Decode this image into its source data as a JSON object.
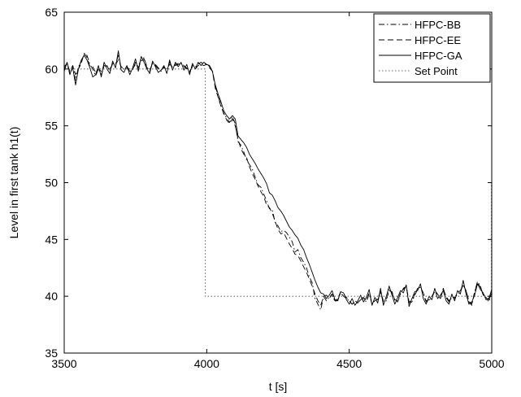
{
  "chart_data": {
    "type": "line",
    "xlabel": "t [s]",
    "ylabel": "Level in first tank h1(t)",
    "xlim": [
      3500,
      5000
    ],
    "ylim": [
      35,
      65
    ],
    "xticks": [
      3500,
      4000,
      4500,
      5000
    ],
    "yticks": [
      35,
      40,
      45,
      50,
      55,
      60,
      65
    ],
    "grid": false,
    "legend_position": "top-right",
    "series": [
      {
        "name": "HFPC-BB",
        "style": "dash-dot",
        "color": "#000000",
        "x": [
          3500,
          3510,
          3520,
          3530,
          3540,
          3550,
          3560,
          3570,
          3580,
          3590,
          3600,
          3610,
          3620,
          3630,
          3640,
          3650,
          3660,
          3670,
          3680,
          3690,
          3700,
          3710,
          3720,
          3730,
          3740,
          3750,
          3760,
          3770,
          3780,
          3790,
          3800,
          3810,
          3820,
          3830,
          3840,
          3850,
          3860,
          3870,
          3880,
          3890,
          3900,
          3910,
          3920,
          3930,
          3940,
          3950,
          3960,
          3970,
          3980,
          3990,
          4000,
          4010,
          4020,
          4030,
          4040,
          4050,
          4060,
          4070,
          4080,
          4090,
          4100,
          4110,
          4120,
          4130,
          4140,
          4150,
          4160,
          4170,
          4180,
          4190,
          4200,
          4210,
          4220,
          4230,
          4240,
          4250,
          4260,
          4270,
          4280,
          4290,
          4300,
          4310,
          4320,
          4330,
          4340,
          4350,
          4360,
          4370,
          4380,
          4390,
          4400,
          4410,
          4420,
          4430,
          4440,
          4450,
          4460,
          4470,
          4480,
          4490,
          4500,
          4510,
          4520,
          4530,
          4540,
          4550,
          4560,
          4570,
          4580,
          4590,
          4600,
          4610,
          4620,
          4630,
          4640,
          4650,
          4660,
          4670,
          4680,
          4690,
          4700,
          4710,
          4720,
          4730,
          4740,
          4750,
          4760,
          4770,
          4780,
          4790,
          4800,
          4810,
          4820,
          4830,
          4840,
          4850,
          4860,
          4870,
          4880,
          4890,
          4900,
          4910,
          4920,
          4930,
          4940,
          4950,
          4960,
          4970,
          4980,
          4990,
          5000
        ],
        "y": [
          60.2,
          60.5,
          59.5,
          60.3,
          59.0,
          60.2,
          60.6,
          61.3,
          61.2,
          60.4,
          60.0,
          59.4,
          60.0,
          59.5,
          60.2,
          60.3,
          59.8,
          60.5,
          60.4,
          61.2,
          60.1,
          60.0,
          60.1,
          59.8,
          59.9,
          60.6,
          60.2,
          60.9,
          61.0,
          60.2,
          59.8,
          60.5,
          60.3,
          60.0,
          59.8,
          60.2,
          59.9,
          60.6,
          60.1,
          60.4,
          60.5,
          60.5,
          60.2,
          60.1,
          59.7,
          60.3,
          60.2,
          60.4,
          60.6,
          60.4,
          60.5,
          60.2,
          59.9,
          58.5,
          57.6,
          56.8,
          56.0,
          55.7,
          55.3,
          55.8,
          55.2,
          53.6,
          53.3,
          52.7,
          52.0,
          51.6,
          51.2,
          50.5,
          49.8,
          49.6,
          49.0,
          48.4,
          47.7,
          47.6,
          46.5,
          46.2,
          45.7,
          45.8,
          45.6,
          45.2,
          44.8,
          43.9,
          44.1,
          43.4,
          43.0,
          42.5,
          41.7,
          41.2,
          39.8,
          39.3,
          38.8,
          40.0,
          39.6,
          39.9,
          40.2,
          39.5,
          39.7,
          40.3,
          40.0,
          39.8,
          39.6,
          39.3,
          39.5,
          39.4,
          39.7,
          39.8,
          39.5,
          40.2,
          39.3,
          39.6,
          39.7,
          40.3,
          39.5,
          39.6,
          40.6,
          40.3,
          39.6,
          39.5,
          40.2,
          40.7,
          40.9,
          39.4,
          39.5,
          40.1,
          40.6,
          40.9,
          40.2,
          39.5,
          39.6,
          40.0,
          40.4,
          40.1,
          39.8,
          40.7,
          39.9,
          39.5,
          39.9,
          39.8,
          40.2,
          40.4,
          41.0,
          40.5,
          39.5,
          39.2,
          40.4,
          41.3,
          40.9,
          40.1,
          39.9,
          39.5,
          40.4
        ]
      },
      {
        "name": "HFPC-EE",
        "style": "dashed",
        "color": "#000000",
        "x": [
          3500,
          3510,
          3520,
          3530,
          3540,
          3550,
          3560,
          3570,
          3580,
          3590,
          3600,
          3610,
          3620,
          3630,
          3640,
          3650,
          3660,
          3670,
          3680,
          3690,
          3700,
          3710,
          3720,
          3730,
          3740,
          3750,
          3760,
          3770,
          3780,
          3790,
          3800,
          3810,
          3820,
          3830,
          3840,
          3850,
          3860,
          3870,
          3880,
          3890,
          3900,
          3910,
          3920,
          3930,
          3940,
          3950,
          3960,
          3970,
          3980,
          3990,
          4000,
          4010,
          4020,
          4030,
          4040,
          4050,
          4060,
          4070,
          4080,
          4090,
          4100,
          4110,
          4120,
          4130,
          4140,
          4150,
          4160,
          4170,
          4180,
          4190,
          4200,
          4210,
          4220,
          4230,
          4240,
          4250,
          4260,
          4270,
          4280,
          4290,
          4300,
          4310,
          4320,
          4330,
          4340,
          4350,
          4360,
          4370,
          4380,
          4390,
          4400,
          4410,
          4420,
          4430,
          4440,
          4450,
          4460,
          4470,
          4480,
          4490,
          4500,
          4510,
          4520,
          4530,
          4540,
          4550,
          4560,
          4570,
          4580,
          4590,
          4600,
          4610,
          4620,
          4630,
          4640,
          4650,
          4660,
          4670,
          4680,
          4690,
          4700,
          4710,
          4720,
          4730,
          4740,
          4750,
          4760,
          4770,
          4780,
          4790,
          4800,
          4810,
          4820,
          4830,
          4840,
          4850,
          4860,
          4870,
          4880,
          4890,
          4900,
          4910,
          4920,
          4930,
          4940,
          4950,
          4960,
          4970,
          4980,
          4990,
          5000
        ],
        "y": [
          60.0,
          60.5,
          59.8,
          60.3,
          59.5,
          60.0,
          60.5,
          61.4,
          61.0,
          60.2,
          60.2,
          59.7,
          60.0,
          59.8,
          60.3,
          60.2,
          60.0,
          60.4,
          60.4,
          60.8,
          60.2,
          60.0,
          60.2,
          59.9,
          60.0,
          60.4,
          60.1,
          60.7,
          60.9,
          60.1,
          59.9,
          60.5,
          60.4,
          60.1,
          59.9,
          60.1,
          60.0,
          60.4,
          60.2,
          60.3,
          60.4,
          60.5,
          60.3,
          60.0,
          59.8,
          60.2,
          60.0,
          60.3,
          60.4,
          60.3,
          60.4,
          60.1,
          59.8,
          58.3,
          57.5,
          56.7,
          56.1,
          55.5,
          55.2,
          55.6,
          55.0,
          53.8,
          53.0,
          52.5,
          52.2,
          51.4,
          50.8,
          50.3,
          49.7,
          49.2,
          48.8,
          48.0,
          47.8,
          47.3,
          46.6,
          45.9,
          45.5,
          45.6,
          45.1,
          44.6,
          44.2,
          43.7,
          43.6,
          43.1,
          42.6,
          42.1,
          41.5,
          40.9,
          40.2,
          39.6,
          39.2,
          40.0,
          40.1,
          39.8,
          40.2,
          39.6,
          39.8,
          40.4,
          40.2,
          39.9,
          39.6,
          39.3,
          39.6,
          39.4,
          39.8,
          39.9,
          39.6,
          40.3,
          39.4,
          39.6,
          39.8,
          40.4,
          39.6,
          39.7,
          40.5,
          40.4,
          39.7,
          39.6,
          40.3,
          40.6,
          40.9,
          39.5,
          39.6,
          40.2,
          40.7,
          40.8,
          40.3,
          39.6,
          39.7,
          40.0,
          40.5,
          40.2,
          39.8,
          40.6,
          40.0,
          39.6,
          39.9,
          39.9,
          40.3,
          40.5,
          41.0,
          40.5,
          39.6,
          39.3,
          40.4,
          41.2,
          40.8,
          40.1,
          40.0,
          39.7,
          40.3
        ]
      },
      {
        "name": "HFPC-GA",
        "style": "solid",
        "color": "#000000",
        "x": [
          3500,
          3510,
          3520,
          3530,
          3540,
          3550,
          3560,
          3570,
          3580,
          3590,
          3600,
          3610,
          3620,
          3630,
          3640,
          3650,
          3660,
          3670,
          3680,
          3690,
          3700,
          3710,
          3720,
          3730,
          3740,
          3750,
          3760,
          3770,
          3780,
          3790,
          3800,
          3810,
          3820,
          3830,
          3840,
          3850,
          3860,
          3870,
          3880,
          3890,
          3900,
          3910,
          3920,
          3930,
          3940,
          3950,
          3960,
          3970,
          3980,
          3990,
          4000,
          4010,
          4020,
          4030,
          4040,
          4050,
          4060,
          4070,
          4080,
          4090,
          4100,
          4110,
          4120,
          4130,
          4140,
          4150,
          4160,
          4170,
          4180,
          4190,
          4200,
          4210,
          4220,
          4230,
          4240,
          4250,
          4260,
          4270,
          4280,
          4290,
          4300,
          4310,
          4320,
          4330,
          4340,
          4350,
          4360,
          4370,
          4380,
          4390,
          4400,
          4410,
          4420,
          4430,
          4440,
          4450,
          4460,
          4470,
          4480,
          4490,
          4500,
          4510,
          4520,
          4530,
          4540,
          4550,
          4560,
          4570,
          4580,
          4590,
          4600,
          4610,
          4620,
          4630,
          4640,
          4650,
          4660,
          4670,
          4680,
          4690,
          4700,
          4710,
          4720,
          4730,
          4740,
          4750,
          4760,
          4770,
          4780,
          4790,
          4800,
          4810,
          4820,
          4830,
          4840,
          4850,
          4860,
          4870,
          4880,
          4890,
          4900,
          4910,
          4920,
          4930,
          4940,
          4950,
          4960,
          4970,
          4980,
          4990,
          5000
        ],
        "y": [
          59.8,
          60.6,
          59.6,
          60.1,
          58.6,
          60.0,
          60.8,
          61.2,
          60.8,
          60.1,
          59.3,
          59.5,
          60.3,
          59.3,
          60.6,
          60.0,
          59.6,
          60.7,
          60.1,
          61.6,
          59.9,
          59.7,
          60.3,
          59.5,
          60.1,
          60.9,
          59.8,
          61.1,
          60.6,
          60.0,
          59.6,
          60.7,
          60.2,
          59.7,
          59.9,
          60.3,
          59.6,
          60.8,
          59.9,
          60.6,
          60.2,
          60.6,
          59.9,
          60.4,
          59.5,
          60.5,
          60.0,
          60.6,
          60.3,
          60.6,
          60.4,
          60.3,
          59.8,
          58.6,
          57.8,
          57.1,
          56.3,
          55.9,
          55.6,
          55.9,
          55.6,
          54.1,
          53.8,
          53.5,
          53.1,
          52.5,
          52.1,
          51.7,
          51.2,
          50.8,
          50.4,
          49.9,
          49.1,
          48.9,
          48.4,
          47.8,
          47.5,
          47.1,
          46.6,
          46.1,
          45.8,
          45.4,
          45.1,
          44.5,
          44.1,
          43.4,
          42.8,
          42.1,
          41.4,
          40.8,
          40.3,
          40.2,
          39.8,
          40.1,
          40.5,
          39.7,
          39.6,
          40.4,
          40.3,
          39.7,
          39.3,
          39.8,
          39.2,
          39.6,
          40.1,
          39.5,
          39.9,
          40.6,
          39.2,
          39.9,
          39.4,
          40.7,
          39.2,
          40.0,
          40.9,
          40.1,
          39.3,
          39.9,
          40.5,
          40.3,
          41.0,
          39.1,
          39.8,
          40.4,
          40.5,
          41.1,
          39.8,
          39.3,
          40.0,
          39.7,
          40.7,
          39.8,
          40.1,
          40.5,
          39.6,
          39.3,
          40.2,
          39.6,
          40.5,
          40.2,
          41.4,
          40.2,
          39.3,
          39.5,
          40.1,
          41.1,
          40.6,
          40.3,
          39.7,
          39.8,
          40.6
        ]
      },
      {
        "name": "Set Point",
        "style": "dotted",
        "color": "#666666",
        "x": [
          3500,
          3995,
          3995,
          4999,
          4999
        ],
        "y": [
          60,
          60,
          40,
          40,
          50
        ]
      }
    ]
  }
}
